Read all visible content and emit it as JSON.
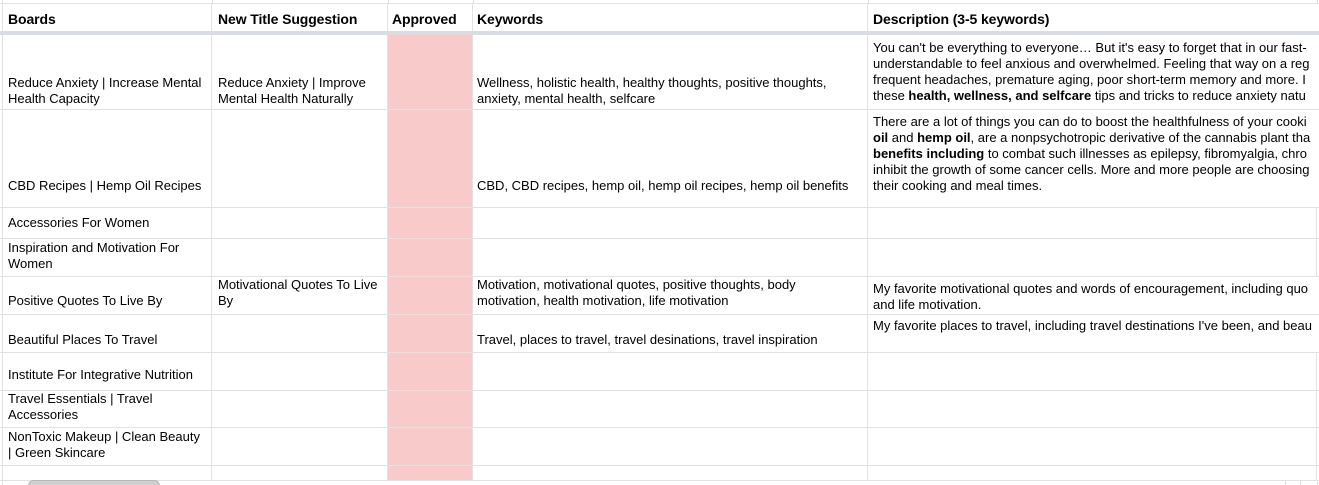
{
  "columns": [
    {
      "id": "boards",
      "label": "Boards"
    },
    {
      "id": "new_title",
      "label": "New Title Suggestion"
    },
    {
      "id": "approved",
      "label": "Approved"
    },
    {
      "id": "keywords",
      "label": "Keywords"
    },
    {
      "id": "description",
      "label": "Description (3-5 keywords)"
    }
  ],
  "colors": {
    "approved_cell_fill": "#f9caca",
    "gridline": "#e2e2e2",
    "frozen_row_shadow": "#d9dde3",
    "scrollbar_thumb": "#cfcfcf",
    "header_text": "#000000",
    "body_text": "#000000"
  },
  "rows": [
    {
      "board": [
        "Reduce Anxiety | Increase Mental",
        "Health Capacity"
      ],
      "new_title": [
        "Reduce Anxiety | Improve",
        "Mental Health Naturally"
      ],
      "approved": "",
      "keywords": [
        "Wellness, holistic health, healthy thoughts, positive thoughts,",
        "anxiety, mental health, selfcare"
      ],
      "description": [
        [
          {
            "t": "You can't be everything to everyone… But it's easy to forget that in our fast-"
          }
        ],
        [
          {
            "t": "understandable to feel anxious and overwhelmed. Feeling that way on a reg"
          }
        ],
        [
          {
            "t": "frequent headaches, premature aging, poor short-term memory and more. I"
          }
        ],
        [
          {
            "t": "these "
          },
          {
            "t": "health, wellness, and selfcare",
            "b": 1
          },
          {
            "t": " tips and tricks to reduce anxiety natu"
          }
        ]
      ]
    },
    {
      "board": [
        "CBD Recipes | Hemp Oil Recipes"
      ],
      "new_title": [],
      "approved": "",
      "keywords": [
        "CBD, CBD recipes, hemp oil, hemp oil recipes, hemp oil benefits"
      ],
      "description": [
        [
          {
            "t": "There are a lot of things you can do to boost the healthfulness of your cooki"
          }
        ],
        [
          {
            "t": "oil",
            "b": 1
          },
          {
            "t": " and "
          },
          {
            "t": "hemp oil",
            "b": 1
          },
          {
            "t": ", are a nonpsychotropic derivative of the cannabis plant tha"
          }
        ],
        [
          {
            "t": "benefits including",
            "b": 1
          },
          {
            "t": " to combat such illnesses as epilepsy, fibromyalgia, chro"
          }
        ],
        [
          {
            "t": "inhibit the growth of some cancer cells. More and more people are choosing"
          }
        ],
        [
          {
            "t": "their cooking and meal times."
          }
        ]
      ]
    },
    {
      "board": [
        "Accessories For Women"
      ],
      "new_title": [],
      "approved": "",
      "keywords": [],
      "description": []
    },
    {
      "board": [
        "Inspiration and Motivation For",
        "Women"
      ],
      "new_title": [],
      "approved": "",
      "keywords": [],
      "description": []
    },
    {
      "board": [
        "Positive Quotes To Live By"
      ],
      "new_title": [
        "Motivational Quotes To Live",
        "By"
      ],
      "approved": "",
      "keywords": [
        "Motivation, motivational quotes, positive thoughts, body",
        "motivation, health motivation, life motivation"
      ],
      "description": [
        [
          {
            "t": "My favorite motivational quotes and words of encouragement, including quo"
          }
        ],
        [
          {
            "t": "and life motivation."
          }
        ]
      ]
    },
    {
      "board": [
        "Beautiful Places To Travel"
      ],
      "new_title": [],
      "approved": "",
      "keywords": [
        "Travel, places to travel, travel desinations, travel inspiration"
      ],
      "description": [
        [
          {
            "t": "My favorite places to travel, including travel destinations I've been, and beau"
          }
        ]
      ]
    },
    {
      "board": [
        "Institute For Integrative Nutrition"
      ],
      "new_title": [],
      "approved": "",
      "keywords": [],
      "description": []
    },
    {
      "board": [
        "Travel Essentials | Travel",
        "Accessories"
      ],
      "new_title": [],
      "approved": "",
      "keywords": [],
      "description": []
    },
    {
      "board": [
        "NonToxic Makeup | Clean Beauty",
        "| Green Skincare"
      ],
      "new_title": [],
      "approved": "",
      "keywords": [],
      "description": []
    },
    {
      "board": [],
      "new_title": [],
      "approved": "",
      "keywords": [],
      "description": []
    }
  ]
}
